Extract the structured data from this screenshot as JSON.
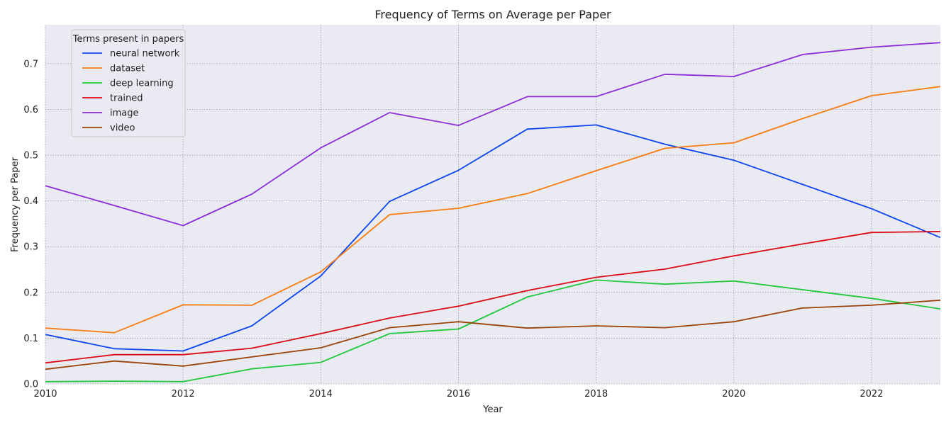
{
  "chart_data": {
    "type": "line",
    "title": "Frequency of Terms on Average per Paper",
    "xlabel": "Year",
    "ylabel": "Frequency per Paper",
    "xlim": [
      2010,
      2023
    ],
    "ylim": [
      0.0,
      0.785
    ],
    "x_ticks": [
      "2010",
      "2012",
      "2014",
      "2016",
      "2018",
      "2020",
      "2022"
    ],
    "y_ticks": [
      "0.0",
      "0.1",
      "0.2",
      "0.3",
      "0.4",
      "0.5",
      "0.6",
      "0.7"
    ],
    "grid": true,
    "legend_title": "Terms present in papers",
    "legend_position": "upper-left",
    "x": [
      2010,
      2011,
      2012,
      2013,
      2014,
      2015,
      2016,
      2017,
      2018,
      2019,
      2020,
      2021,
      2022,
      2023
    ],
    "series": [
      {
        "name": "neural network",
        "color": "#0b45f0",
        "values": [
          0.108,
          0.077,
          0.072,
          0.127,
          0.236,
          0.399,
          0.467,
          0.557,
          0.566,
          0.524,
          0.489,
          0.436,
          0.383,
          0.32
        ]
      },
      {
        "name": "dataset",
        "color": "#f97c10",
        "values": [
          0.122,
          0.112,
          0.173,
          0.172,
          0.245,
          0.37,
          0.384,
          0.416,
          0.466,
          0.515,
          0.527,
          0.58,
          0.63,
          0.65
        ]
      },
      {
        "name": "deep learning",
        "color": "#1fc73b",
        "values": [
          0.005,
          0.006,
          0.005,
          0.033,
          0.047,
          0.11,
          0.12,
          0.19,
          0.227,
          0.218,
          0.225,
          0.206,
          0.187,
          0.164
        ]
      },
      {
        "name": "trained",
        "color": "#dc0a14",
        "values": [
          0.046,
          0.064,
          0.064,
          0.078,
          0.11,
          0.144,
          0.17,
          0.204,
          0.233,
          0.251,
          0.28,
          0.306,
          0.331,
          0.333
        ]
      },
      {
        "name": "image",
        "color": "#8c2ed8",
        "values": [
          0.433,
          0.39,
          0.346,
          0.415,
          0.516,
          0.593,
          0.565,
          0.628,
          0.628,
          0.677,
          0.672,
          0.72,
          0.736,
          0.746
        ]
      },
      {
        "name": "video",
        "color": "#9b430a",
        "values": [
          0.032,
          0.05,
          0.039,
          0.059,
          0.079,
          0.123,
          0.136,
          0.122,
          0.127,
          0.123,
          0.136,
          0.166,
          0.172,
          0.183
        ]
      }
    ]
  }
}
